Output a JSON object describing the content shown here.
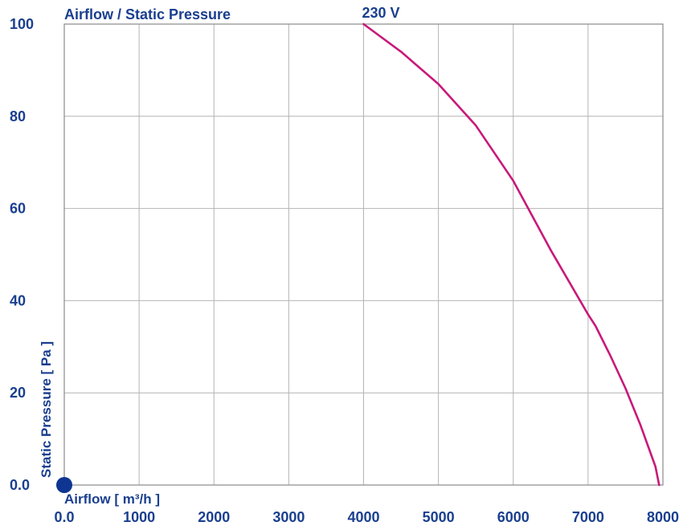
{
  "chart_data": {
    "type": "line",
    "title": "Airflow / Static Pressure",
    "xlabel": "Airflow [ m³/h ]",
    "ylabel": "Static Pressure [ Pa ]",
    "xlim": [
      0,
      8000
    ],
    "ylim": [
      0,
      100
    ],
    "x_ticks": [
      0,
      1000,
      2000,
      3000,
      4000,
      5000,
      6000,
      7000,
      8000
    ],
    "x_tick_labels": [
      "0.0",
      "1000",
      "2000",
      "3000",
      "4000",
      "5000",
      "6000",
      "7000",
      "8000"
    ],
    "y_ticks": [
      0,
      20,
      40,
      60,
      80,
      100
    ],
    "y_tick_labels": [
      "0.0",
      "20",
      "40",
      "60",
      "80",
      "100"
    ],
    "grid": true,
    "series": [
      {
        "name": "230 V",
        "color": "#c8197a",
        "x": [
          4000,
          4500,
          5000,
          5500,
          6000,
          6500,
          7000,
          7100,
          7300,
          7500,
          7700,
          7900,
          7950
        ],
        "y": [
          100,
          94,
          87,
          78,
          66,
          51,
          37,
          34.5,
          28,
          21,
          13,
          4,
          0
        ]
      }
    ],
    "marker": {
      "x": 0,
      "y": 0,
      "color": "#0d3591"
    }
  }
}
